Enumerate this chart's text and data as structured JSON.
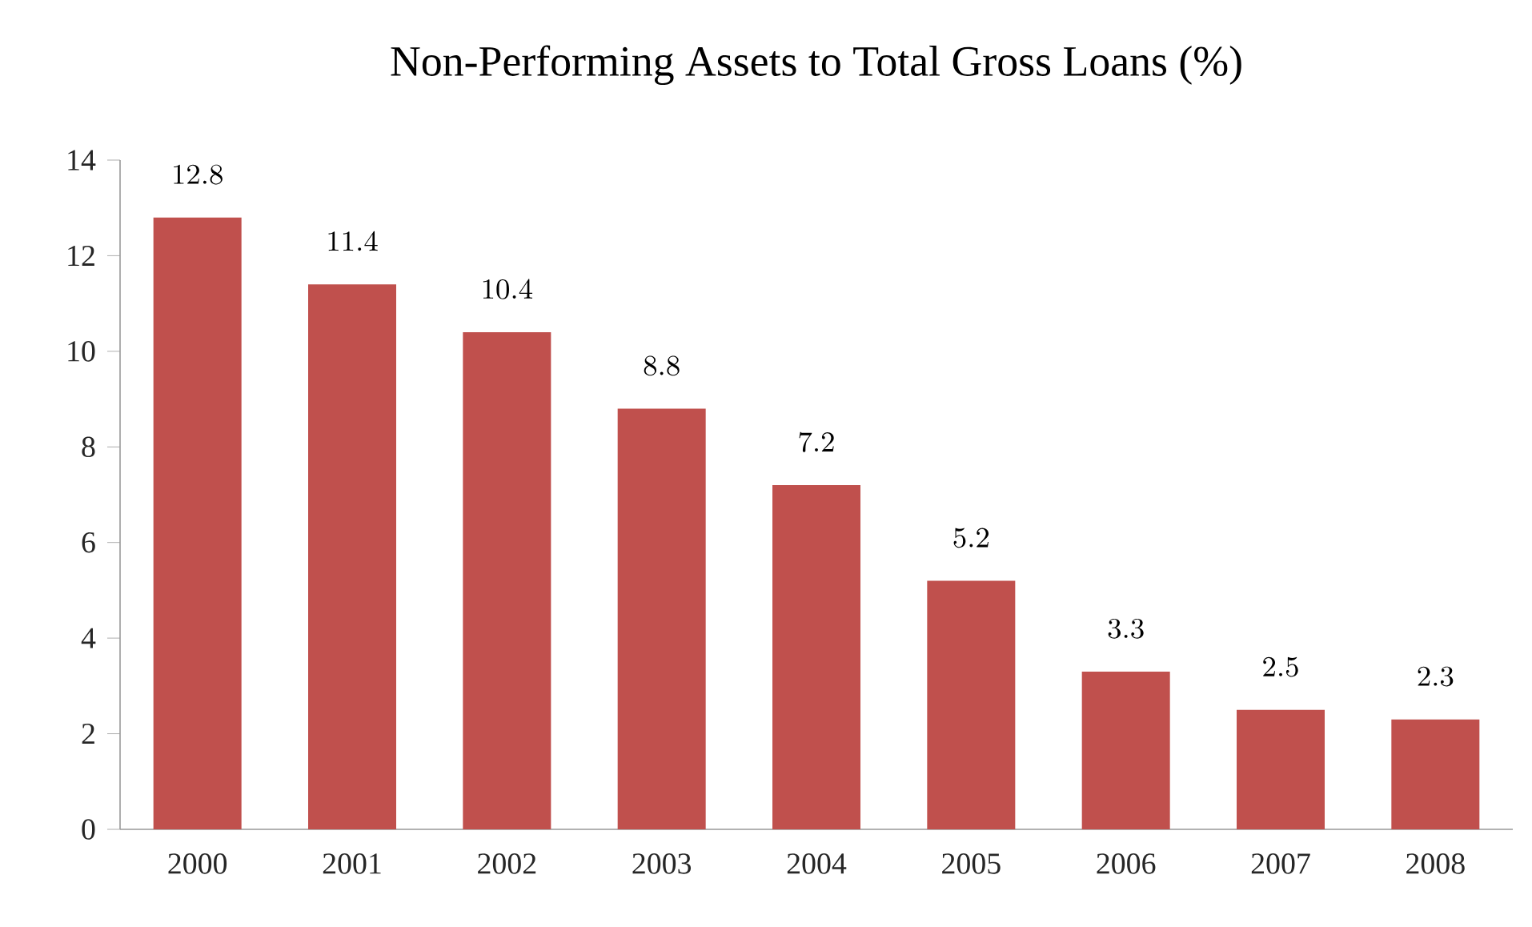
{
  "chart_data": {
    "type": "bar",
    "title": "Non-Performing Assets to Total Gross Loans (%)",
    "categories": [
      "2000",
      "2001",
      "2002",
      "2003",
      "2004",
      "2005",
      "2006",
      "2007",
      "2008"
    ],
    "values": [
      12.8,
      11.4,
      10.4,
      8.8,
      7.2,
      5.2,
      3.3,
      2.5,
      2.3
    ],
    "color": "#c0504d",
    "ylim": [
      0,
      14
    ],
    "yticks": [
      0,
      2,
      4,
      6,
      8,
      10,
      12,
      14
    ],
    "data_labels": true
  }
}
